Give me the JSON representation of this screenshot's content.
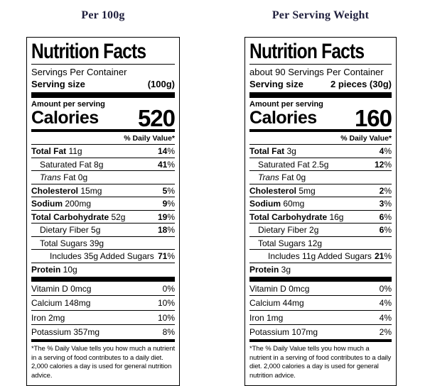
{
  "page": {
    "left_title": "Per 100g",
    "right_title": "Per Serving Weight",
    "title_color": "#1f1f3d",
    "background": "#ffffff"
  },
  "labels": [
    {
      "header": "Nutrition Facts",
      "servings_line": "Servings Per Container",
      "serving_size_label": "Serving size",
      "serving_size_value": "(100g)",
      "amount_per_serving": "Amount per serving",
      "calories_label": "Calories",
      "calories_value": "520",
      "daily_value_header": "% Daily Value*",
      "rows": [
        {
          "italic": "",
          "bold": "Total Fat",
          "rest": " 11g",
          "dv": "14",
          "dv_sign": "%"
        },
        {
          "italic": "",
          "bold": "",
          "rest": "Saturated Fat 8g",
          "dv": "41",
          "dv_sign": "%"
        },
        {
          "italic": "Trans",
          "bold": "",
          "rest": " Fat 0g",
          "dv": "",
          "dv_sign": ""
        },
        {
          "italic": "",
          "bold": "Cholesterol",
          "rest": " 15mg",
          "dv": "5",
          "dv_sign": "%"
        },
        {
          "italic": "",
          "bold": "Sodium",
          "rest": " 200mg",
          "dv": "9",
          "dv_sign": "%"
        },
        {
          "italic": "",
          "bold": "Total Carbohydrate",
          "rest": " 52g",
          "dv": "19",
          "dv_sign": "%"
        },
        {
          "italic": "",
          "bold": "",
          "rest": "Dietary Fiber 5g",
          "dv": "18",
          "dv_sign": "%"
        },
        {
          "italic": "",
          "bold": "",
          "rest": "Total Sugars 39g",
          "dv": "",
          "dv_sign": ""
        },
        {
          "italic": "",
          "bold": "",
          "rest": "Includes 35g Added Sugars",
          "dv": "71",
          "dv_sign": "%"
        },
        {
          "italic": "",
          "bold": "Protein",
          "rest": " 10g",
          "dv": "",
          "dv_sign": ""
        }
      ],
      "vitamins": [
        {
          "name": "Vitamin D 0mcg",
          "dv": "0%"
        },
        {
          "name": "Calcium 148mg",
          "dv": "10%"
        },
        {
          "name": "Iron 2mg",
          "dv": "10%"
        },
        {
          "name": "Potassium 357mg",
          "dv": "8%"
        }
      ],
      "footnote": "*The % Daily Value tells you how much a nutrient in a serving of food contributes to a daily diet. 2,000 calories a day is used for general nutrition advice."
    },
    {
      "header": "Nutrition Facts",
      "servings_line": "about 90 Servings Per Container",
      "serving_size_label": "Serving size",
      "serving_size_value": "2 pieces (30g)",
      "amount_per_serving": "Amount per serving",
      "calories_label": "Calories",
      "calories_value": "160",
      "daily_value_header": "% Daily Value*",
      "rows": [
        {
          "italic": "",
          "bold": "Total Fat",
          "rest": " 3g",
          "dv": "4",
          "dv_sign": "%"
        },
        {
          "italic": "",
          "bold": "",
          "rest": "Saturated Fat 2.5g",
          "dv": "12",
          "dv_sign": "%"
        },
        {
          "italic": "Trans",
          "bold": "",
          "rest": " Fat 0g",
          "dv": "",
          "dv_sign": ""
        },
        {
          "italic": "",
          "bold": "Cholesterol",
          "rest": " 5mg",
          "dv": "2",
          "dv_sign": "%"
        },
        {
          "italic": "",
          "bold": "Sodium",
          "rest": " 60mg",
          "dv": "3",
          "dv_sign": "%"
        },
        {
          "italic": "",
          "bold": "Total Carbohydrate",
          "rest": " 16g",
          "dv": "6",
          "dv_sign": "%"
        },
        {
          "italic": "",
          "bold": "",
          "rest": "Dietary Fiber 2g",
          "dv": "6",
          "dv_sign": "%"
        },
        {
          "italic": "",
          "bold": "",
          "rest": "Total Sugars 12g",
          "dv": "",
          "dv_sign": ""
        },
        {
          "italic": "",
          "bold": "",
          "rest": "Includes 11g Added Sugars",
          "dv": "21",
          "dv_sign": "%"
        },
        {
          "italic": "",
          "bold": "Protein",
          "rest": " 3g",
          "dv": "",
          "dv_sign": ""
        }
      ],
      "vitamins": [
        {
          "name": "Vitamin D 0mcg",
          "dv": "0%"
        },
        {
          "name": "Calcium 44mg",
          "dv": "4%"
        },
        {
          "name": "Iron 1mg",
          "dv": "4%"
        },
        {
          "name": "Potassium 107mg",
          "dv": "2%"
        }
      ],
      "footnote": "*The % Daily Value tells you how much a nutrient in a serving of food contributes to a daily diet. 2,000 calories a day is used for general nutrition advice."
    }
  ]
}
